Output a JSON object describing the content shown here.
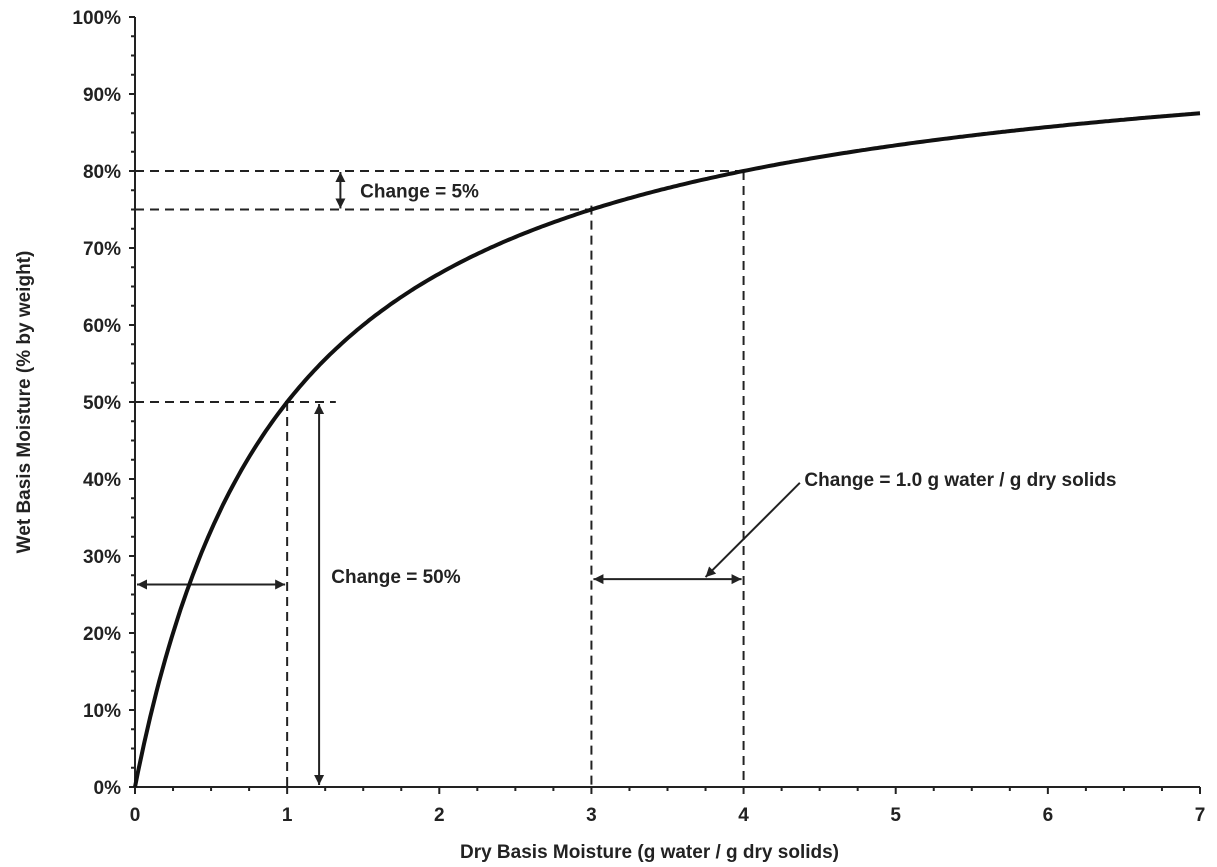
{
  "chart_data": {
    "type": "line",
    "xlabel": "Dry Basis Moisture  (g water / g dry solids)",
    "ylabel": "Wet Basis Moisture  (% by weight)",
    "xlim": [
      0,
      7
    ],
    "ylim": [
      0,
      100
    ],
    "x_ticks": [
      "0",
      "1",
      "2",
      "3",
      "4",
      "5",
      "6",
      "7"
    ],
    "y_ticks": [
      "0%",
      "10%",
      "20%",
      "30%",
      "40%",
      "50%",
      "60%",
      "70%",
      "80%",
      "90%",
      "100%"
    ],
    "grid": false,
    "series": [
      {
        "x": [
          0,
          0.25,
          0.5,
          0.75,
          1,
          1.5,
          2,
          2.5,
          3,
          3.5,
          4,
          4.5,
          5,
          5.5,
          6,
          6.5,
          7
        ],
        "y": [
          0,
          20,
          33.3,
          42.9,
          50,
          60,
          66.7,
          71.4,
          75,
          77.8,
          80,
          81.8,
          83.3,
          84.6,
          85.7,
          86.7,
          87.5
        ]
      }
    ],
    "annotations": {
      "change_5": "Change =  5%",
      "change_50": "Change =  50%",
      "change_1g": "Change = 1.0 g water / g dry solids"
    }
  }
}
